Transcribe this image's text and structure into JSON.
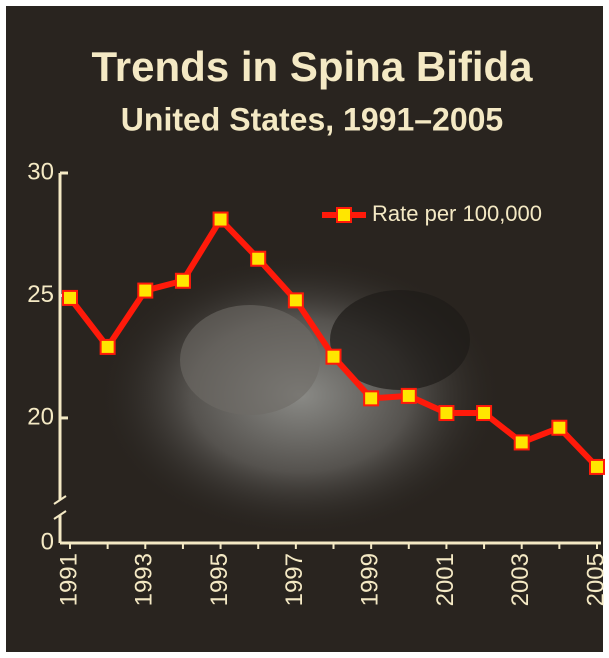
{
  "chart_data": {
    "type": "line",
    "title": "Trends in Spina Bifida",
    "subtitle": "United States, 1991–2005",
    "x": [
      1991,
      1992,
      1993,
      1994,
      1995,
      1996,
      1997,
      1998,
      1999,
      2000,
      2001,
      2002,
      2003,
      2004,
      2005
    ],
    "xlim": [
      1991,
      2005
    ],
    "xticks": [
      1991,
      1993,
      1995,
      1997,
      1999,
      2001,
      2003,
      2005
    ],
    "series": [
      {
        "name": "Rate per 100,000",
        "color": "#ff1a0a",
        "marker_color": "#ffe600",
        "values": [
          24.9,
          22.9,
          25.2,
          25.6,
          28.1,
          26.5,
          24.8,
          22.5,
          20.8,
          20.9,
          20.2,
          20.2,
          19.0,
          19.6,
          18.0
        ]
      }
    ],
    "ylim": [
      0,
      30
    ],
    "yticks": [
      0,
      20,
      25,
      30
    ],
    "axis_break": true,
    "legend": "top-right"
  }
}
